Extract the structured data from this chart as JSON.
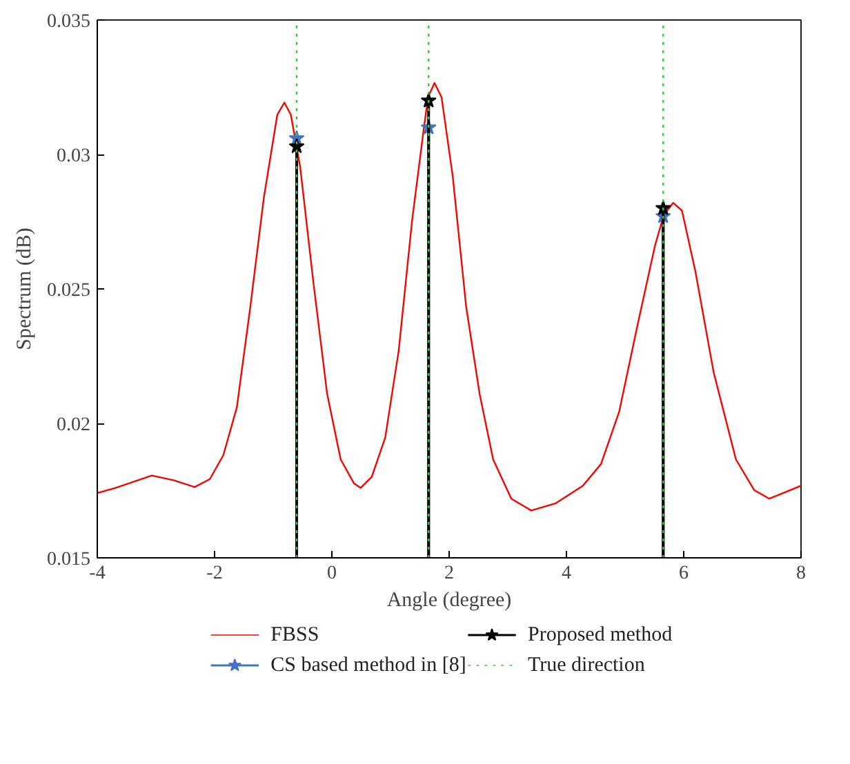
{
  "chart_data": {
    "type": "line",
    "xlabel": "Angle (degree)",
    "ylabel": "Spectrum (dB)",
    "xlim": [
      -4,
      8
    ],
    "ylim": [
      0.015,
      0.035
    ],
    "xticks": [
      -4,
      -2,
      0,
      2,
      4,
      6,
      8
    ],
    "yticks": [
      0.015,
      0.02,
      0.025,
      0.03,
      0.035
    ],
    "grid": false,
    "legend": "bottom",
    "series": [
      {
        "name": "FBSS",
        "color": "#ff0000",
        "marker": "none",
        "x": [
          -4,
          -3.69,
          -3.07,
          -2.69,
          -2.34,
          -2.08,
          -1.85,
          -1.62,
          -1.39,
          -1.16,
          -0.93,
          -0.81,
          -0.7,
          -0.54,
          -0.31,
          -0.08,
          0.15,
          0.38,
          0.49,
          0.68,
          0.91,
          1.14,
          1.37,
          1.56,
          1.64,
          1.75,
          1.87,
          2.06,
          2.29,
          2.52,
          2.75,
          3.06,
          3.4,
          3.82,
          4.28,
          4.59,
          4.9,
          5.2,
          5.51,
          5.66,
          5.82,
          5.97,
          6.2,
          6.51,
          6.89,
          7.2,
          7.46,
          7.73,
          8
        ],
        "values": [
          0.01741,
          0.0176,
          0.01806,
          0.01788,
          0.01763,
          0.01793,
          0.01882,
          0.0206,
          0.02434,
          0.02839,
          0.03148,
          0.03193,
          0.03148,
          0.02953,
          0.02515,
          0.02109,
          0.01866,
          0.01776,
          0.0176,
          0.01801,
          0.01947,
          0.02271,
          0.02758,
          0.03083,
          0.03213,
          0.03266,
          0.03213,
          0.02921,
          0.02434,
          0.02109,
          0.01866,
          0.0172,
          0.01676,
          0.01703,
          0.01768,
          0.01849,
          0.02044,
          0.02353,
          0.02661,
          0.02775,
          0.0282,
          0.02791,
          0.02564,
          0.0219,
          0.01866,
          0.01752,
          0.0172,
          0.01744,
          0.01768
        ]
      },
      {
        "name": "CS based method in [8]",
        "color": "#4472c4",
        "type": "lollipop",
        "marker": "star",
        "x": [
          -0.6,
          1.65,
          5.65
        ],
        "values": [
          0.0306,
          0.031,
          0.0277
        ]
      },
      {
        "name": "Proposed method",
        "color": "#000000",
        "type": "lollipop",
        "marker": "star",
        "x": [
          -0.6,
          1.65,
          5.65
        ],
        "values": [
          0.0303,
          0.032,
          0.028
        ]
      }
    ],
    "ref_lines": [
      {
        "axis": "x",
        "value": -0.6,
        "label": "True direction",
        "color": "#33cc33",
        "line_style": "dotted"
      },
      {
        "axis": "x",
        "value": 1.65,
        "color": "#33cc33",
        "line_style": "dotted"
      },
      {
        "axis": "x",
        "value": 5.65,
        "color": "#33cc33",
        "line_style": "dotted"
      }
    ]
  }
}
